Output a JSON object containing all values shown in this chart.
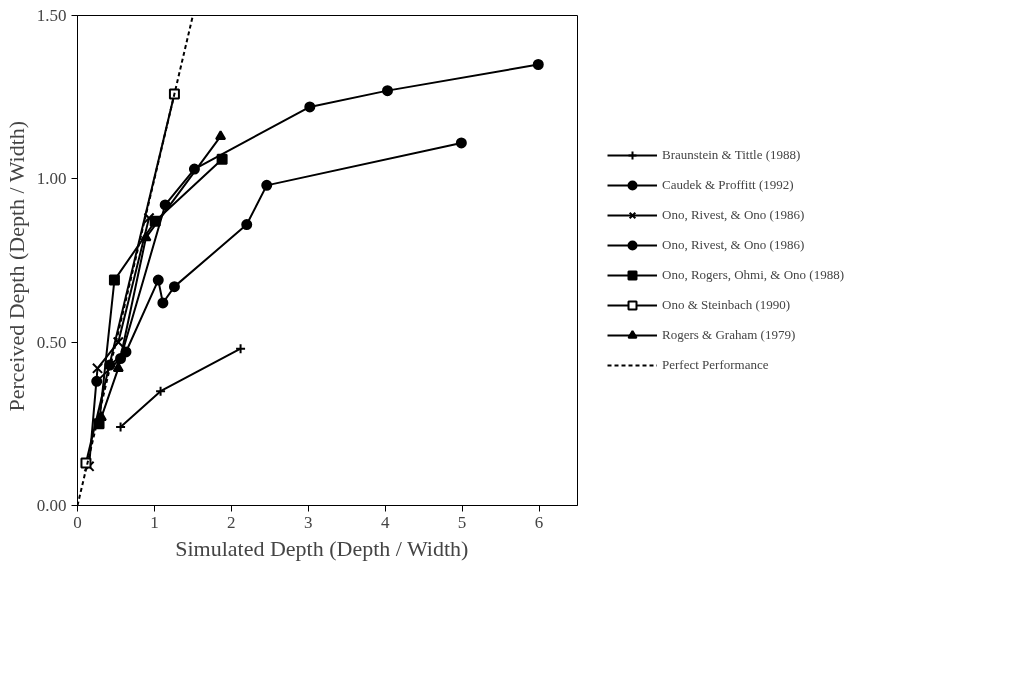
{
  "chart_data": {
    "type": "line",
    "xlabel": "Simulated Depth   (Depth / Width)",
    "ylabel": "Perceived Depth   (Depth / Width)",
    "xlim": [
      0,
      6.5
    ],
    "ylim": [
      0,
      1.5
    ],
    "xticks": [
      0,
      1,
      2,
      3,
      4,
      5,
      6
    ],
    "yticks": [
      {
        "value": 0,
        "label": "0.00"
      },
      {
        "value": 0.5,
        "label": "0.50"
      },
      {
        "value": 1,
        "label": "1.00"
      },
      {
        "value": 1.5,
        "label": "1.50"
      }
    ],
    "grid": false,
    "legend": "right",
    "line_style": "solid",
    "series": [
      {
        "name": "Braunstein & Tittle (1988)",
        "color": "#000000",
        "marker": "plus",
        "x": [
          0.56,
          1.08,
          2.12
        ],
        "values": [
          0.24,
          0.35,
          0.48
        ]
      },
      {
        "name": "Caudek & Proffitt (1992)",
        "color": "#000000",
        "marker": "circle",
        "x": [
          0.25,
          0.56,
          1.14,
          1.52,
          3.02,
          4.03,
          5.99
        ],
        "values": [
          0.38,
          0.45,
          0.92,
          1.03,
          1.22,
          1.27,
          1.35
        ]
      },
      {
        "name": "Ono, Rivest, & Ono (1986)",
        "color": "#000000",
        "marker": "x",
        "x": [
          0.15,
          0.26,
          0.53,
          0.93
        ],
        "values": [
          0.12,
          0.42,
          0.5,
          0.88
        ]
      },
      {
        "name": "Ono, Rivest, & Ono (1986)",
        "color": "#000000",
        "marker": "circle",
        "x": [
          0.42,
          0.63,
          1.05,
          1.11,
          1.26,
          2.2,
          2.46,
          4.99
        ],
        "values": [
          0.43,
          0.47,
          0.69,
          0.62,
          0.67,
          0.86,
          0.98,
          1.11
        ]
      },
      {
        "name": "Ono, Rogers, Ohmi, & Ono (1988)",
        "color": "#000000",
        "marker": "square",
        "x": [
          0.28,
          0.48,
          1.01,
          1.88
        ],
        "values": [
          0.25,
          0.69,
          0.87,
          1.06
        ]
      },
      {
        "name": "Ono & Steinbach (1990)",
        "color": "#000000",
        "marker": "square_open",
        "x": [
          0.11,
          1.26
        ],
        "values": [
          0.13,
          1.26
        ]
      },
      {
        "name": "Rogers & Graham (1979)",
        "color": "#000000",
        "marker": "triangle",
        "x": [
          0.31,
          0.53,
          0.89,
          1.86
        ],
        "values": [
          0.27,
          0.42,
          0.82,
          1.13
        ]
      },
      {
        "name": "Perfect Performance",
        "color": "#000000",
        "marker": "none",
        "line_style": "dashed",
        "x": [
          0,
          1.5
        ],
        "values": [
          0,
          1.5
        ]
      }
    ]
  }
}
